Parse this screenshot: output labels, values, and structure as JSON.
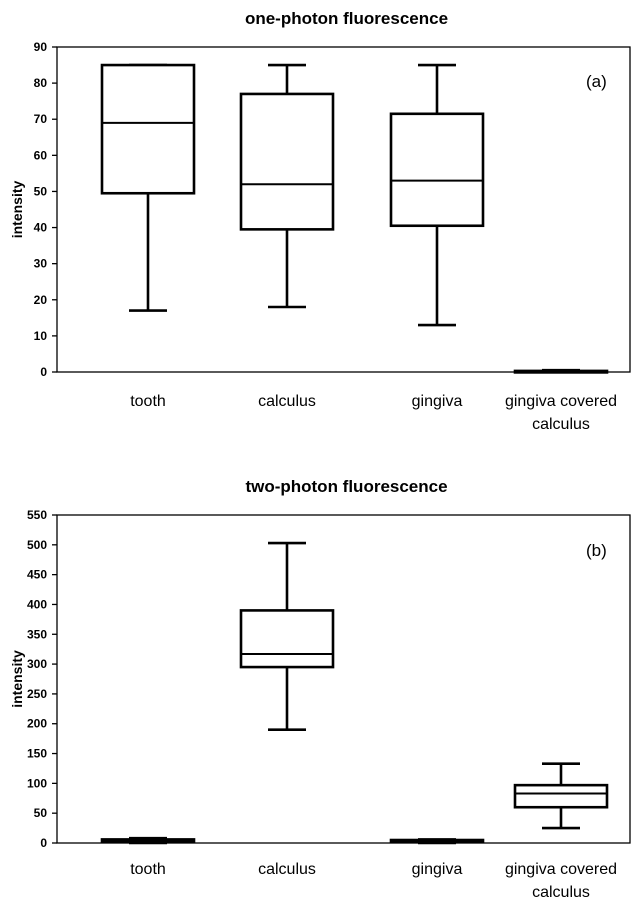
{
  "chart_data": [
    {
      "type": "box",
      "title": "one-photon fluorescence",
      "ylabel": "intensity",
      "panel_label": "(a)",
      "ylim": [
        0,
        90
      ],
      "yticks": [
        "0",
        "10",
        "20",
        "30",
        "40",
        "50",
        "60",
        "70",
        "80",
        "90"
      ],
      "categories": [
        "tooth",
        "calculus",
        "gingiva",
        "gingiva covered calculus"
      ],
      "boxes": [
        {
          "min": 17,
          "q1": 49.5,
          "median": 69,
          "q3": 85,
          "max": 85
        },
        {
          "min": 18,
          "q1": 39.5,
          "median": 52,
          "q3": 77,
          "max": 85
        },
        {
          "min": 13,
          "q1": 40.5,
          "median": 53,
          "q3": 71.5,
          "max": 85
        },
        {
          "min": 0,
          "q1": 0,
          "median": 0,
          "q3": 0.3,
          "max": 0.5
        }
      ]
    },
    {
      "type": "box",
      "title": "two-photon fluorescence",
      "ylabel": "intensity",
      "panel_label": "(b)",
      "ylim": [
        0,
        550
      ],
      "yticks": [
        "0",
        "50",
        "100",
        "150",
        "200",
        "250",
        "300",
        "350",
        "400",
        "450",
        "500",
        "550"
      ],
      "categories": [
        "tooth",
        "calculus",
        "gingiva",
        "gingiva covered calculus"
      ],
      "boxes": [
        {
          "min": 0,
          "q1": 2,
          "median": 4,
          "q3": 6,
          "max": 8
        },
        {
          "min": 190,
          "q1": 295,
          "median": 317,
          "q3": 390,
          "max": 503
        },
        {
          "min": 0,
          "q1": 2,
          "median": 4,
          "q3": 5,
          "max": 6
        },
        {
          "min": 25,
          "q1": 60,
          "median": 83,
          "q3": 97,
          "max": 133
        }
      ]
    }
  ]
}
